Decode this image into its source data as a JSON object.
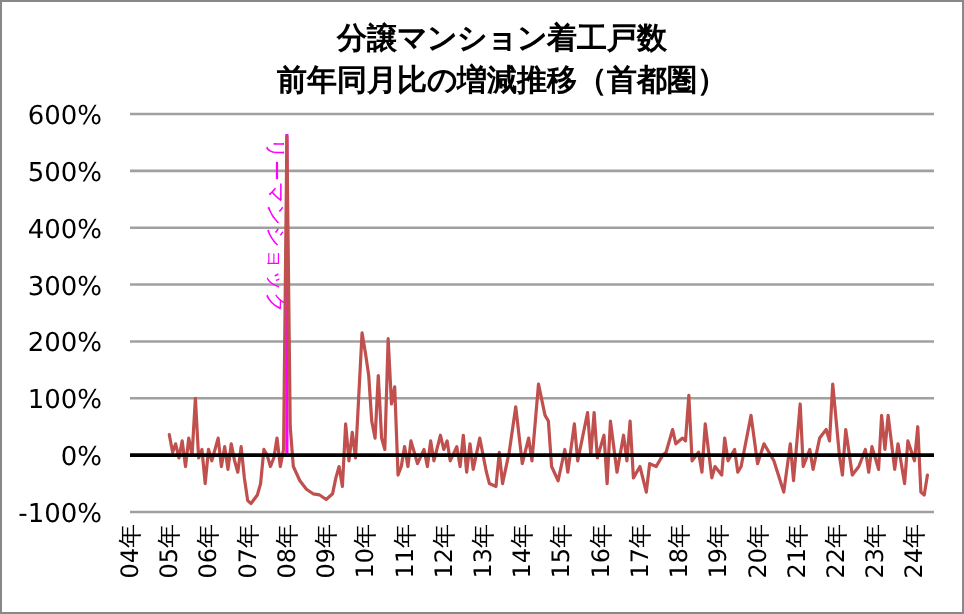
{
  "chart_data": {
    "type": "line",
    "title": "分譲マンション着工戸数",
    "subtitle": "前年同月比の増減推移（首都圏）",
    "x": [
      "2005-01",
      "2005-02",
      "2005-03",
      "2005-04",
      "2005-05",
      "2005-06",
      "2005-07",
      "2005-08",
      "2005-09",
      "2005-10",
      "2005-11",
      "2005-12",
      "2006-01",
      "2006-02",
      "2006-04",
      "2006-05",
      "2006-06",
      "2006-07",
      "2006-08",
      "2006-09",
      "2006-10",
      "2006-11",
      "2006-12",
      "2007-01",
      "2007-02",
      "2007-04",
      "2007-05",
      "2007-06",
      "2007-07",
      "2007-08",
      "2007-09",
      "2007-10",
      "2007-11",
      "2007-12",
      "2008-01",
      "2008-02",
      "2008-03",
      "2008-05",
      "2008-07",
      "2008-09",
      "2008-11",
      "2009-01",
      "2009-03",
      "2009-04",
      "2009-05",
      "2009-06",
      "2009-07",
      "2009-08",
      "2009-09",
      "2009-10",
      "2009-12",
      "2010-01",
      "2010-02",
      "2010-03",
      "2010-04",
      "2010-05",
      "2010-06",
      "2010-07",
      "2010-08",
      "2010-09",
      "2010-10",
      "2010-11",
      "2010-12",
      "2011-01",
      "2011-02",
      "2011-03",
      "2011-04",
      "2011-05",
      "2011-07",
      "2011-08",
      "2011-09",
      "2011-10",
      "2011-12",
      "2012-01",
      "2012-02",
      "2012-03",
      "2012-05",
      "2012-06",
      "2012-07",
      "2012-08",
      "2012-09",
      "2012-10",
      "2012-12",
      "2013-02",
      "2013-03",
      "2013-05",
      "2013-06",
      "2013-07",
      "2013-09",
      "2013-11",
      "2014-01",
      "2014-03",
      "2014-04",
      "2014-06",
      "2014-08",
      "2014-09",
      "2014-10",
      "2014-12",
      "2015-02",
      "2015-03",
      "2015-05",
      "2015-06",
      "2015-09",
      "2015-10",
      "2015-11",
      "2015-12",
      "2016-02",
      "2016-03",
      "2016-04",
      "2016-06",
      "2016-08",
      "2016-09",
      "2016-10",
      "2016-11",
      "2017-01",
      "2017-03",
      "2017-04",
      "2017-06",
      "2017-08",
      "2017-09",
      "2017-11",
      "2017-12",
      "2018-02",
      "2018-03",
      "2018-04",
      "2018-05",
      "2018-07",
      "2018-08",
      "2018-09",
      "2018-11",
      "2018-12",
      "2019-02",
      "2019-03",
      "2019-04",
      "2019-06",
      "2019-07",
      "2019-08",
      "2019-11",
      "2020-01",
      "2020-03",
      "2020-06",
      "2020-09",
      "2020-11",
      "2020-12",
      "2021-02",
      "2021-03",
      "2021-05",
      "2021-06",
      "2021-08",
      "2021-10",
      "2021-11",
      "2021-12",
      "2022-02",
      "2022-03",
      "2022-04",
      "2022-06",
      "2022-08",
      "2022-10",
      "2022-11",
      "2022-12",
      "2023-02",
      "2023-03",
      "2023-04",
      "2023-05",
      "2023-07",
      "2023-08",
      "2023-10",
      "2023-11",
      "2024-01",
      "2024-02",
      "2024-03",
      "2024-04",
      "2024-05"
    ],
    "values": [
      36,
      5,
      20,
      -5,
      25,
      -20,
      30,
      0,
      100,
      -5,
      10,
      -50,
      10,
      -10,
      30,
      -20,
      15,
      -25,
      20,
      -10,
      -30,
      15,
      -40,
      -80,
      -85,
      -70,
      -50,
      10,
      0,
      -20,
      -5,
      30,
      -20,
      10,
      560,
      50,
      -20,
      -45,
      -60,
      -68,
      -70,
      -78,
      -68,
      -40,
      -20,
      -55,
      55,
      -10,
      40,
      -5,
      215,
      180,
      140,
      60,
      30,
      140,
      30,
      10,
      205,
      90,
      120,
      -35,
      -20,
      15,
      -20,
      25,
      5,
      -15,
      10,
      -20,
      25,
      -10,
      35,
      10,
      25,
      -10,
      15,
      -20,
      35,
      -30,
      20,
      -25,
      30,
      -30,
      -50,
      -55,
      5,
      -50,
      5,
      85,
      -15,
      30,
      -10,
      125,
      70,
      60,
      -20,
      -45,
      10,
      -30,
      55,
      -10,
      75,
      0,
      75,
      -5,
      35,
      -50,
      60,
      -30,
      35,
      -10,
      60,
      -40,
      -20,
      -65,
      -15,
      -20,
      0,
      5,
      45,
      20,
      30,
      25,
      105,
      -10,
      5,
      -30,
      55,
      -40,
      -20,
      -35,
      30,
      -10,
      10,
      -30,
      -20,
      70,
      -15,
      20,
      -10,
      -65,
      20,
      -45,
      90,
      -20,
      10,
      -25,
      30,
      45,
      25,
      125,
      0,
      -35,
      45,
      -35,
      -20,
      10,
      -30,
      15,
      -25,
      70,
      10,
      70,
      -25,
      20,
      -50,
      25,
      -10,
      50,
      -65,
      -70,
      -35
    ],
    "color": "#c0504d",
    "xlim": [
      "2004-01",
      "2024-07"
    ],
    "xticks": [
      {
        "value": "2004-01",
        "label": "04年"
      },
      {
        "value": "2005-01",
        "label": "05年"
      },
      {
        "value": "2006-01",
        "label": "06年"
      },
      {
        "value": "2007-01",
        "label": "07年"
      },
      {
        "value": "2008-01",
        "label": "08年"
      },
      {
        "value": "2009-01",
        "label": "09年"
      },
      {
        "value": "2010-01",
        "label": "10年"
      },
      {
        "value": "2011-01",
        "label": "11年"
      },
      {
        "value": "2012-01",
        "label": "12年"
      },
      {
        "value": "2013-01",
        "label": "13年"
      },
      {
        "value": "2014-01",
        "label": "14年"
      },
      {
        "value": "2015-01",
        "label": "15年"
      },
      {
        "value": "2016-01",
        "label": "16年"
      },
      {
        "value": "2017-01",
        "label": "17年"
      },
      {
        "value": "2018-01",
        "label": "18年"
      },
      {
        "value": "2019-01",
        "label": "19年"
      },
      {
        "value": "2020-01",
        "label": "20年"
      },
      {
        "value": "2021-01",
        "label": "21年"
      },
      {
        "value": "2022-01",
        "label": "22年"
      },
      {
        "value": "2023-01",
        "label": "23年"
      },
      {
        "value": "2024-01",
        "label": "24年"
      }
    ],
    "ylim": [
      -100,
      600
    ],
    "yticks": [
      {
        "value": -100,
        "label": "-100%"
      },
      {
        "value": 0,
        "label": "0%"
      },
      {
        "value": 100,
        "label": "100%"
      },
      {
        "value": 200,
        "label": "200%"
      },
      {
        "value": 300,
        "label": "300%"
      },
      {
        "value": 400,
        "label": "400%"
      },
      {
        "value": 500,
        "label": "500%"
      },
      {
        "value": 600,
        "label": "600%"
      }
    ],
    "grid": "y",
    "ref_lines": [
      {
        "axis": "x",
        "value": "2008-01",
        "label": "リーマンショック",
        "color": "#ff00ff"
      }
    ]
  }
}
